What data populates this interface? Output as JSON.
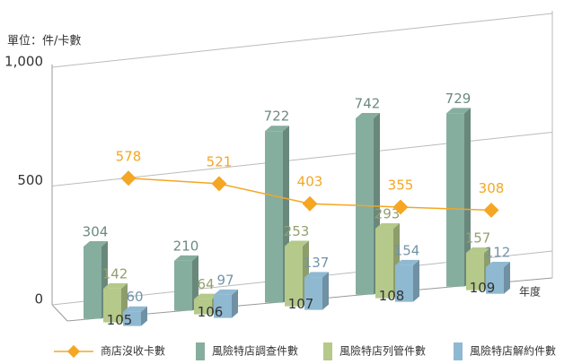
{
  "chart_data": {
    "type": "bar",
    "unit_label": "單位：件/卡數",
    "x_label": "年度",
    "categories": [
      "105",
      "106",
      "107",
      "108",
      "109"
    ],
    "ylim": [
      0,
      1000
    ],
    "yticks": [
      0,
      500,
      {
        "value": 1000,
        "label": "1,000"
      }
    ],
    "grid": true,
    "series": [
      {
        "name": "商店沒收卡數",
        "type": "line",
        "color": "#f5a623",
        "values": [
          578,
          521,
          403,
          355,
          308
        ]
      },
      {
        "name": "風險特店調查件數",
        "type": "bar",
        "color": "#86ae9f",
        "values": [
          304,
          210,
          722,
          742,
          729
        ]
      },
      {
        "name": "風險特店列管件數",
        "type": "bar",
        "color": "#b5c98a",
        "values": [
          142,
          64,
          253,
          293,
          157
        ]
      },
      {
        "name": "風險特店解約件數",
        "type": "bar",
        "color": "#8fb9d1",
        "values": [
          60,
          97,
          137,
          154,
          112
        ]
      }
    ]
  }
}
